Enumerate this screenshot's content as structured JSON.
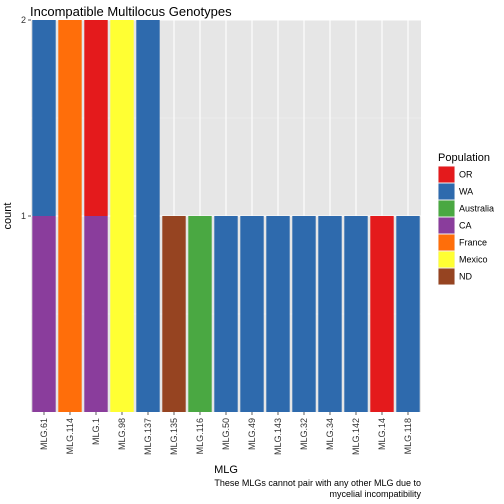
{
  "chart_data": {
    "type": "bar",
    "stacked": true,
    "title": "Incompatible Multilocus Genotypes",
    "xlabel": "MLG",
    "ylabel": "count",
    "caption_lines": [
      "These MLGs cannot pair with any other MLG due to",
      "mycelial incompatibility"
    ],
    "categories": [
      "MLG.61",
      "MLG.114",
      "MLG.1",
      "MLG.98",
      "MLG.137",
      "MLG.135",
      "MLG.116",
      "MLG.50",
      "MLG.49",
      "MLG.143",
      "MLG.32",
      "MLG.34",
      "MLG.142",
      "MLG.14",
      "MLG.118"
    ],
    "y_ticks": [
      1,
      2
    ],
    "ylim": [
      0,
      2
    ],
    "grid": true,
    "legend": {
      "title": "Population",
      "position": "right",
      "entries": [
        {
          "name": "OR",
          "color": "#e41a1c"
        },
        {
          "name": "WA",
          "color": "#2e6aad"
        },
        {
          "name": "Australia",
          "color": "#4aa842"
        },
        {
          "name": "CA",
          "color": "#8a3d9c"
        },
        {
          "name": "France",
          "color": "#ff6e0a"
        },
        {
          "name": "Mexico",
          "color": "#ffff33"
        },
        {
          "name": "ND",
          "color": "#964421"
        }
      ]
    },
    "series": [
      {
        "name": "OR",
        "values": [
          0,
          0,
          1,
          0,
          0,
          0,
          0,
          0,
          0,
          0,
          0,
          0,
          0,
          1,
          0
        ]
      },
      {
        "name": "WA",
        "values": [
          1,
          0,
          0,
          0,
          2,
          0,
          0,
          1,
          1,
          1,
          1,
          1,
          1,
          0,
          1
        ]
      },
      {
        "name": "Australia",
        "values": [
          0,
          0,
          0,
          0,
          0,
          0,
          1,
          0,
          0,
          0,
          0,
          0,
          0,
          0,
          0
        ]
      },
      {
        "name": "CA",
        "values": [
          1,
          0,
          1,
          0,
          0,
          0,
          0,
          0,
          0,
          0,
          0,
          0,
          0,
          0,
          0
        ]
      },
      {
        "name": "France",
        "values": [
          0,
          2,
          0,
          0,
          0,
          0,
          0,
          0,
          0,
          0,
          0,
          0,
          0,
          0,
          0
        ]
      },
      {
        "name": "Mexico",
        "values": [
          0,
          0,
          0,
          2,
          0,
          0,
          0,
          0,
          0,
          0,
          0,
          0,
          0,
          0,
          0
        ]
      },
      {
        "name": "ND",
        "values": [
          0,
          0,
          0,
          0,
          0,
          1,
          0,
          0,
          0,
          0,
          0,
          0,
          0,
          0,
          0
        ]
      }
    ],
    "stack_order_bottom_to_top": [
      "ND",
      "Mexico",
      "France",
      "CA",
      "Australia",
      "WA",
      "OR"
    ]
  }
}
